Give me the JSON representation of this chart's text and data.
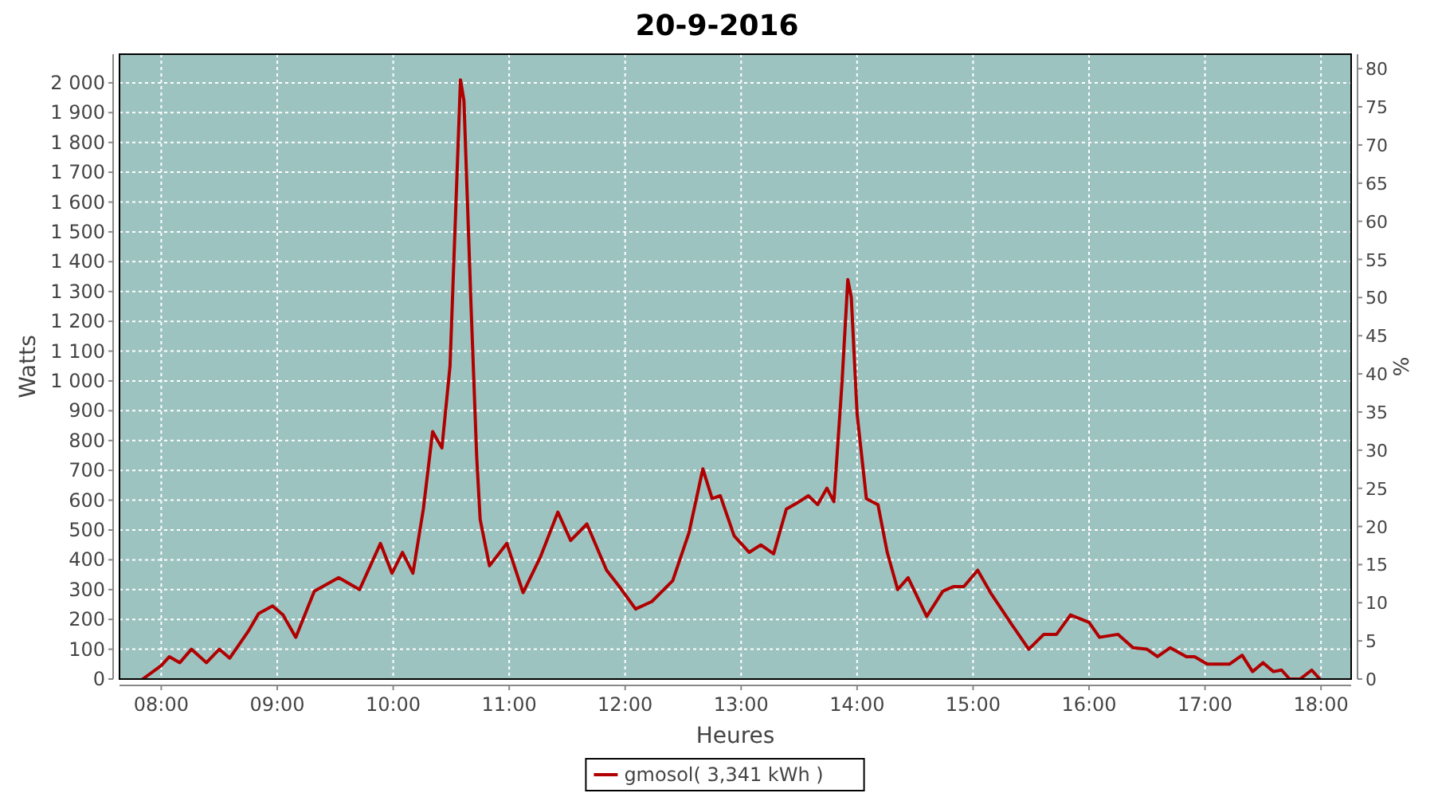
{
  "chart_data": {
    "type": "line",
    "title": "20-9-2016",
    "xlabel": "Heures",
    "ylabel": "Watts",
    "y2label": "%",
    "x": [
      7.84,
      8.0,
      8.07,
      8.16,
      8.26,
      8.39,
      8.5,
      8.59,
      8.75,
      8.84,
      8.96,
      9.05,
      9.16,
      9.32,
      9.53,
      9.71,
      9.89,
      9.99,
      10.08,
      10.17,
      10.26,
      10.34,
      10.42,
      10.49,
      10.58,
      10.61,
      10.67,
      10.72,
      10.75,
      10.83,
      10.98,
      11.12,
      11.27,
      11.42,
      11.53,
      11.67,
      11.84,
      11.95,
      12.09,
      12.23,
      12.41,
      12.55,
      12.67,
      12.75,
      12.82,
      12.94,
      13.07,
      13.17,
      13.28,
      13.39,
      13.48,
      13.58,
      13.66,
      13.74,
      13.8,
      13.87,
      13.92,
      13.95,
      14.0,
      14.08,
      14.18,
      14.26,
      14.35,
      14.44,
      14.6,
      14.74,
      14.83,
      14.92,
      15.04,
      15.15,
      15.33,
      15.48,
      15.61,
      15.72,
      15.84,
      16.0,
      16.09,
      16.25,
      16.38,
      16.5,
      16.59,
      16.7,
      16.84,
      16.91,
      17.02,
      17.21,
      17.32,
      17.41,
      17.5,
      17.59,
      17.66,
      17.73,
      17.82,
      17.92,
      17.99
    ],
    "series": [
      {
        "name": "gmosol( 3,341 kWh )",
        "color": "#b00000",
        "values": [
          0,
          45,
          75,
          55,
          100,
          55,
          100,
          70,
          160,
          220,
          245,
          215,
          140,
          295,
          340,
          300,
          455,
          355,
          425,
          355,
          570,
          830,
          775,
          1050,
          2010,
          1940,
          1265,
          745,
          535,
          380,
          455,
          290,
          410,
          560,
          465,
          520,
          365,
          310,
          235,
          260,
          330,
          490,
          705,
          605,
          615,
          480,
          425,
          450,
          420,
          570,
          590,
          615,
          585,
          640,
          595,
          995,
          1340,
          1280,
          890,
          605,
          585,
          425,
          300,
          340,
          210,
          295,
          310,
          310,
          365,
          290,
          185,
          100,
          150,
          150,
          215,
          190,
          140,
          150,
          105,
          100,
          75,
          105,
          75,
          75,
          50,
          50,
          80,
          25,
          55,
          25,
          30,
          0,
          0,
          30,
          0
        ]
      }
    ],
    "xlim": [
      7.64,
      18.26
    ],
    "xticks": [
      {
        "value": 8,
        "label": "08:00"
      },
      {
        "value": 9,
        "label": "09:00"
      },
      {
        "value": 10,
        "label": "10:00"
      },
      {
        "value": 11,
        "label": "11:00"
      },
      {
        "value": 12,
        "label": "12:00"
      },
      {
        "value": 13,
        "label": "13:00"
      },
      {
        "value": 14,
        "label": "14:00"
      },
      {
        "value": 15,
        "label": "15:00"
      },
      {
        "value": 16,
        "label": "16:00"
      },
      {
        "value": 17,
        "label": "17:00"
      },
      {
        "value": 18,
        "label": "18:00"
      }
    ],
    "ylim": [
      0,
      2096
    ],
    "yticks": [
      0,
      100,
      200,
      300,
      400,
      500,
      600,
      700,
      800,
      900,
      {
        "value": 1000,
        "label": "1 000"
      },
      {
        "value": 1100,
        "label": "1 100"
      },
      {
        "value": 1200,
        "label": "1 200"
      },
      {
        "value": 1300,
        "label": "1 300"
      },
      {
        "value": 1400,
        "label": "1 400"
      },
      {
        "value": 1500,
        "label": "1 500"
      },
      {
        "value": 1600,
        "label": "1 600"
      },
      {
        "value": 1700,
        "label": "1 700"
      },
      {
        "value": 1800,
        "label": "1 800"
      },
      {
        "value": 1900,
        "label": "1 900"
      },
      {
        "value": 2000,
        "label": "2 000"
      }
    ],
    "y2lim": [
      0,
      81.9
    ],
    "y2ticks": [
      0,
      5,
      10,
      15,
      20,
      25,
      30,
      35,
      40,
      45,
      50,
      55,
      60,
      65,
      70,
      75,
      80
    ],
    "grid": true,
    "legend": "bottom",
    "marker": "none",
    "line_style": "solid"
  }
}
